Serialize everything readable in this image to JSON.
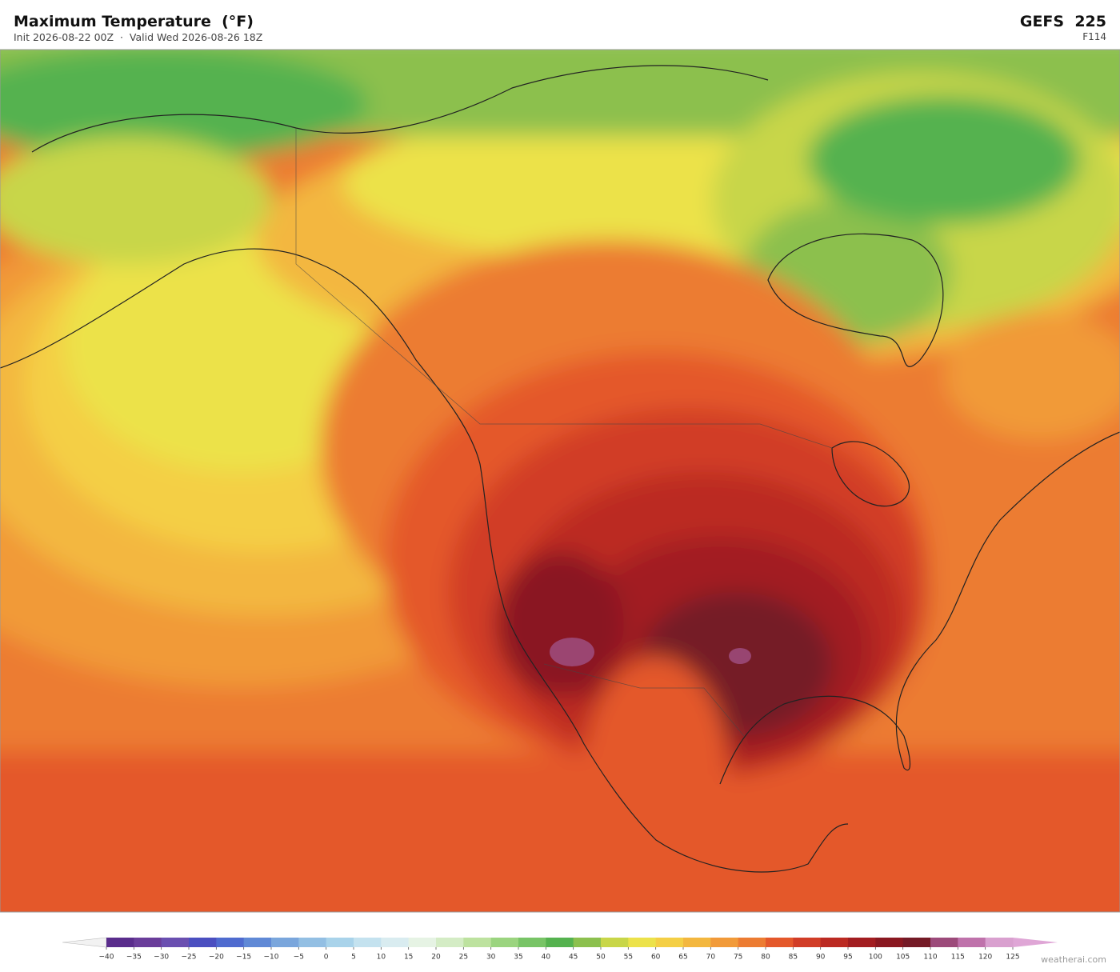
{
  "header": {
    "title": "Maximum Temperature  (°F)",
    "subtitle": "Init 2026-08-22 00Z  ·  Valid Wed 2026-08-26 18Z",
    "model": "GEFS  225",
    "forecast_hour": "F114"
  },
  "colorbar": {
    "ticks": [
      {
        "value": -40,
        "label": "−40"
      },
      {
        "value": -35,
        "label": "−35"
      },
      {
        "value": -30,
        "label": "−30"
      },
      {
        "value": -25,
        "label": "−25"
      },
      {
        "value": -20,
        "label": "−20"
      },
      {
        "value": -15,
        "label": "−15"
      },
      {
        "value": -10,
        "label": "−10"
      },
      {
        "value": -5,
        "label": "−5"
      },
      0,
      5,
      10,
      15,
      20,
      25,
      30,
      35,
      40,
      45,
      50,
      55,
      60,
      65,
      70,
      75,
      80,
      85,
      90,
      95,
      100,
      105,
      110,
      115,
      120,
      125
    ],
    "colors": [
      "#5a2d8c",
      "#6a3d9a",
      "#6a4fb0",
      "#4b4fc0",
      "#4f6bcf",
      "#6089d6",
      "#7aa6dc",
      "#93bfe3",
      "#a9d3ea",
      "#c4e2ef",
      "#d9ecf0",
      "#e6f3e4",
      "#d4ecc5",
      "#bde29f",
      "#9bd47f",
      "#78c466",
      "#55b24f",
      "#8cc04e",
      "#c8d648",
      "#ece24a",
      "#f4cf45",
      "#f3b73f",
      "#f19a39",
      "#ec7c32",
      "#e4582b",
      "#d13d27",
      "#bb2a22",
      "#a21d20",
      "#8a1820",
      "#741a26",
      "#9c4a7a",
      "#bf72ab",
      "#d9a0cf"
    ],
    "under_color": "#f2f2f2",
    "over_color": "#dfa6d6"
  },
  "watermark": "weatherai.com"
}
